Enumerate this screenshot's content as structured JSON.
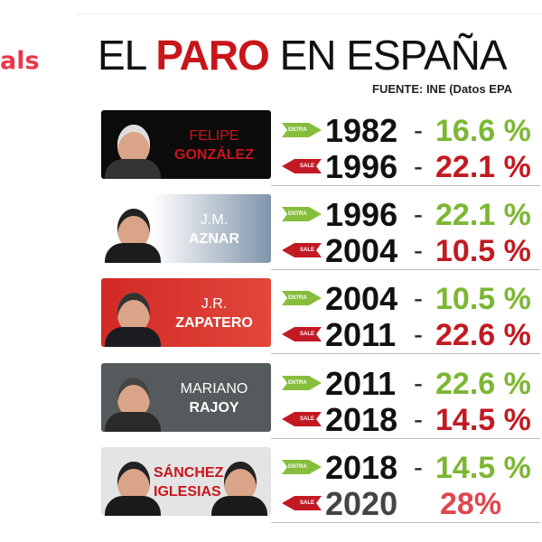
{
  "side_text": "als",
  "title": {
    "pre": "EL",
    "highlight": "PARO",
    "post": "EN ESPAÑA"
  },
  "source": "FUENTE: INE (Datos EPA",
  "arrow_labels": {
    "in": "ENTRA",
    "out": "SALE"
  },
  "colors": {
    "enter_green": "#7cb733",
    "exit_red": "#c21a22",
    "title_red": "#c8151b"
  },
  "rows": [
    {
      "name1": "FELIPE",
      "name2": "GONZÁLEZ",
      "start_year": "1982",
      "start_rate": "16.6 %",
      "end_year": "1996",
      "end_rate": "22.1 %"
    },
    {
      "name1": "J.M.",
      "name2": "AZNAR",
      "start_year": "1996",
      "start_rate": "22.1 %",
      "end_year": "2004",
      "end_rate": "10.5 %"
    },
    {
      "name1": "J.R.",
      "name2": "ZAPATERO",
      "start_year": "2004",
      "start_rate": "10.5 %",
      "end_year": "2011",
      "end_rate": "22.6 %"
    },
    {
      "name1": "MARIANO",
      "name2": "RAJOY",
      "start_year": "2011",
      "start_rate": "22.6 %",
      "end_year": "2018",
      "end_rate": "14.5 %"
    },
    {
      "name1": "SÁNCHEZ",
      "name2": "IGLESIAS",
      "start_year": "2018",
      "start_rate": "14.5 %",
      "end_year": "2020",
      "end_rate": "28%"
    }
  ]
}
